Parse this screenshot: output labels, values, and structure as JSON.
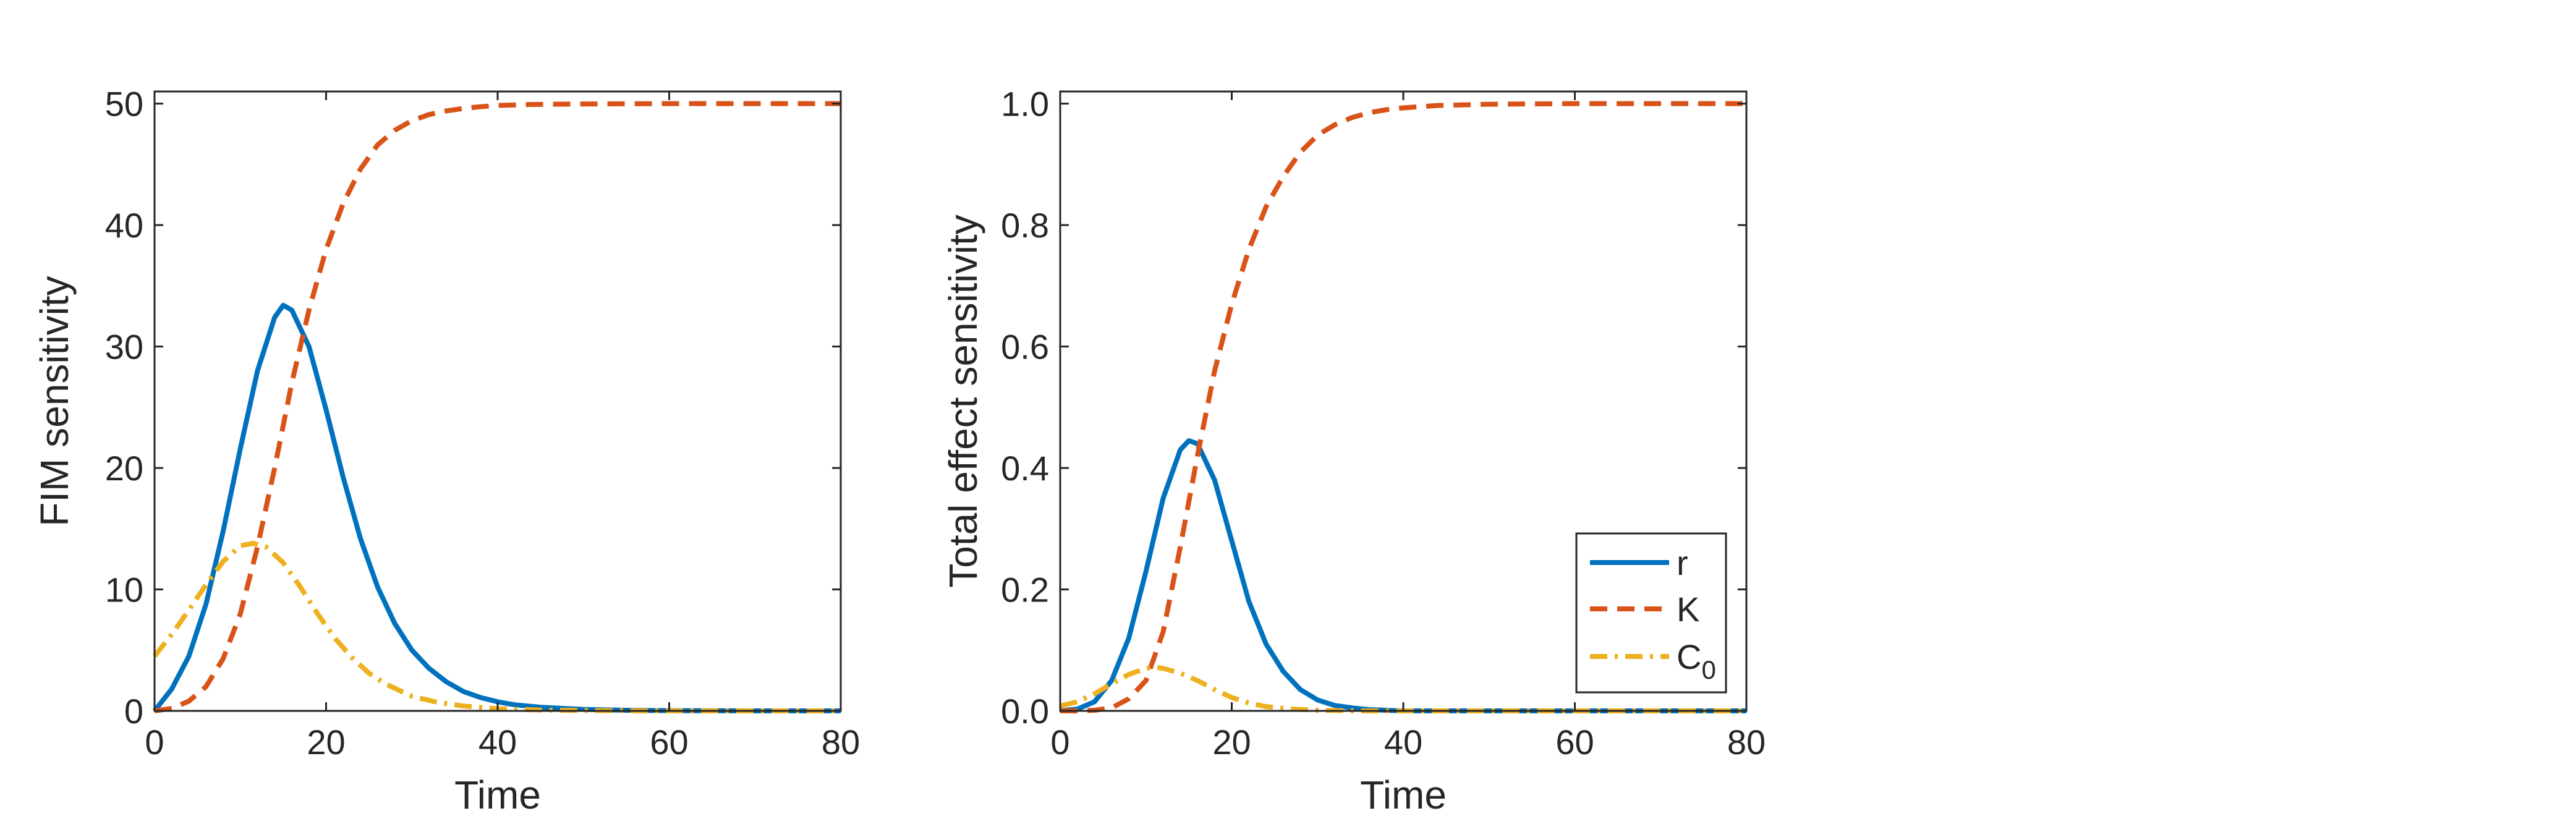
{
  "chart_data": [
    {
      "type": "line",
      "xlabel": "Time",
      "ylabel": "FIM sensitivity",
      "xlim": [
        0,
        80
      ],
      "ylim": [
        0,
        51
      ],
      "xticks": [
        0,
        20,
        40,
        60,
        80
      ],
      "yticks": [
        0,
        10,
        20,
        30,
        40,
        50
      ],
      "xtick_labels": [
        "0",
        "20",
        "40",
        "60",
        "80"
      ],
      "ytick_labels": [
        "0",
        "10",
        "20",
        "30",
        "40",
        "50"
      ],
      "grid": false,
      "series": [
        {
          "name": "r",
          "color": "#0072BD",
          "dash": "solid",
          "x": [
            0,
            2,
            4,
            6,
            8,
            10,
            12,
            14,
            15,
            16,
            18,
            20,
            22,
            24,
            26,
            28,
            30,
            32,
            34,
            36,
            38,
            40,
            42,
            45,
            50,
            55,
            60,
            70,
            80
          ],
          "y": [
            0,
            1.8,
            4.5,
            8.8,
            14.8,
            21.6,
            28.0,
            32.4,
            33.4,
            33.0,
            30.0,
            24.8,
            19.2,
            14.2,
            10.2,
            7.2,
            5.0,
            3.5,
            2.4,
            1.6,
            1.1,
            0.75,
            0.5,
            0.3,
            0.12,
            0.05,
            0.02,
            0,
            0
          ]
        },
        {
          "name": "K",
          "color": "#D95319",
          "dash": "dashed",
          "x": [
            0,
            2,
            4,
            6,
            8,
            10,
            12,
            14,
            16,
            18,
            20,
            22,
            24,
            26,
            28,
            30,
            32,
            34,
            36,
            38,
            40,
            44,
            50,
            60,
            70,
            80
          ],
          "y": [
            0,
            0.2,
            0.8,
            2.0,
            4.3,
            8.0,
            13.5,
            20.0,
            27.0,
            33.0,
            38.0,
            41.8,
            44.6,
            46.6,
            47.8,
            48.6,
            49.1,
            49.4,
            49.6,
            49.75,
            49.85,
            49.93,
            49.97,
            50,
            50,
            50
          ]
        },
        {
          "name": "C_0",
          "color": "#EDB120",
          "dash": "dashdot",
          "x": [
            0,
            2,
            4,
            6,
            8,
            10,
            11.5,
            13,
            15,
            17,
            19,
            21,
            23,
            25,
            27,
            30,
            33,
            36,
            40,
            45,
            50,
            60,
            70,
            80
          ],
          "y": [
            4.5,
            6.3,
            8.3,
            10.4,
            12.3,
            13.6,
            13.8,
            13.5,
            12.2,
            10.2,
            8.0,
            6.0,
            4.4,
            3.1,
            2.2,
            1.2,
            0.7,
            0.4,
            0.18,
            0.07,
            0.03,
            0,
            0,
            0
          ]
        }
      ]
    },
    {
      "type": "line",
      "xlabel": "Time",
      "ylabel": "Total effect sensitivity",
      "xlim": [
        0,
        80
      ],
      "ylim": [
        0,
        1.02
      ],
      "xticks": [
        0,
        20,
        40,
        60,
        80
      ],
      "yticks": [
        0,
        0.2,
        0.4,
        0.6,
        0.8,
        1.0
      ],
      "xtick_labels": [
        "0",
        "20",
        "40",
        "60",
        "80"
      ],
      "ytick_labels": [
        "0.0",
        "0.2",
        "0.4",
        "0.6",
        "0.8",
        "1.0"
      ],
      "grid": false,
      "legend_position": "bottom-right",
      "series": [
        {
          "name": "r",
          "color": "#0072BD",
          "dash": "solid",
          "x": [
            0,
            2,
            4,
            6,
            8,
            10,
            12,
            14,
            15,
            16,
            18,
            20,
            22,
            24,
            26,
            28,
            30,
            32,
            34,
            36,
            38,
            40,
            45,
            50,
            60,
            70,
            80
          ],
          "y": [
            0,
            0.003,
            0.015,
            0.05,
            0.12,
            0.23,
            0.35,
            0.43,
            0.445,
            0.44,
            0.38,
            0.28,
            0.18,
            0.11,
            0.065,
            0.035,
            0.018,
            0.009,
            0.005,
            0.002,
            0.001,
            0,
            0,
            0,
            0,
            0,
            0
          ]
        },
        {
          "name": "K",
          "color": "#D95319",
          "dash": "dashed",
          "x": [
            0,
            2,
            4,
            6,
            8,
            10,
            12,
            14,
            16,
            18,
            20,
            22,
            24,
            26,
            28,
            30,
            32,
            34,
            36,
            38,
            40,
            44,
            50,
            60,
            70,
            80
          ],
          "y": [
            0,
            0,
            0.001,
            0.005,
            0.02,
            0.05,
            0.13,
            0.27,
            0.42,
            0.56,
            0.67,
            0.76,
            0.83,
            0.88,
            0.92,
            0.948,
            0.965,
            0.977,
            0.985,
            0.99,
            0.993,
            0.997,
            0.999,
            1.0,
            1.0,
            1.0
          ]
        },
        {
          "name": "C_0",
          "color": "#EDB120",
          "dash": "dashdot",
          "x": [
            0,
            2,
            4,
            6,
            8,
            10,
            11,
            12,
            14,
            16,
            18,
            20,
            22,
            24,
            27,
            30,
            35,
            40,
            50,
            60,
            70,
            80
          ],
          "y": [
            0.008,
            0.015,
            0.028,
            0.045,
            0.06,
            0.07,
            0.072,
            0.07,
            0.062,
            0.05,
            0.035,
            0.022,
            0.013,
            0.007,
            0.003,
            0.001,
            0,
            0,
            0,
            0,
            0,
            0
          ]
        }
      ],
      "legend": {
        "entries": [
          {
            "label": "r",
            "sub": ""
          },
          {
            "label": "K",
            "sub": ""
          },
          {
            "label": "C",
            "sub": "0"
          }
        ]
      }
    }
  ]
}
